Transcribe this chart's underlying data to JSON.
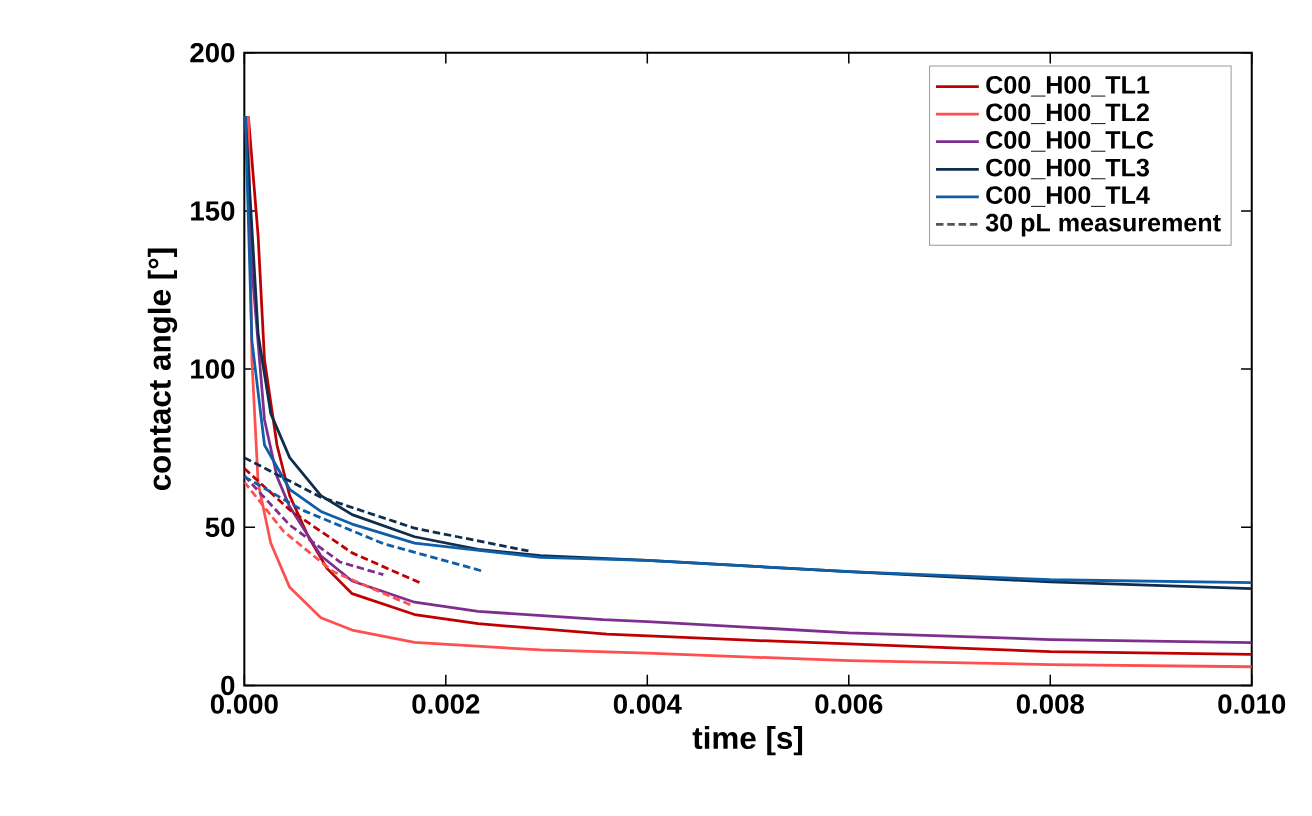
{
  "chart_data": {
    "type": "line",
    "xlabel": "time [s]",
    "ylabel": "contact angle [°]",
    "xlim": [
      0,
      0.01
    ],
    "ylim": [
      0,
      200
    ],
    "xticks": [
      {
        "value": 0,
        "label": "0.000"
      },
      {
        "value": 0.002,
        "label": "0.002"
      },
      {
        "value": 0.004,
        "label": "0.004"
      },
      {
        "value": 0.006,
        "label": "0.006"
      },
      {
        "value": 0.008,
        "label": "0.008"
      },
      {
        "value": 0.01,
        "label": "0.010"
      }
    ],
    "yticks": [
      0,
      50,
      100,
      150,
      200
    ],
    "legend": "top right",
    "grid": false,
    "series": [
      {
        "name": "C00_H00_TL1",
        "color": "#c00000",
        "line_style": "solid",
        "x": [
          4e-05,
          0.000137,
          0.0002,
          0.000324,
          0.00045,
          0.000636,
          0.00082,
          0.00107,
          0.00169,
          0.00232,
          0.0036,
          0.005,
          0.006,
          0.008,
          0.01
        ],
        "values": [
          180,
          142,
          103,
          76,
          60,
          47,
          37,
          29,
          22.4,
          19.5,
          16.2,
          14.3,
          13.1,
          10.7,
          9.8
        ]
      },
      {
        "name": "C00_H00_TL2",
        "color": "#ff4f4f",
        "line_style": "solid",
        "x": [
          4e-05,
          7.5e-05,
          0.000137,
          0.000262,
          0.00045,
          0.00076,
          0.00107,
          0.00169,
          0.00294,
          0.004,
          0.006,
          0.008,
          0.01
        ],
        "values": [
          180,
          103,
          64,
          45,
          31,
          21.4,
          17.5,
          13.6,
          11.2,
          10.2,
          7.8,
          6.6,
          5.9
        ]
      },
      {
        "name": "C00_H00_TLC",
        "color": "#7e2f8e",
        "line_style": "solid",
        "x": [
          1e-05,
          7.5e-05,
          0.0002,
          0.000324,
          0.00045,
          0.00076,
          0.00107,
          0.00169,
          0.00232,
          0.00356,
          0.004,
          0.006,
          0.008,
          0.01
        ],
        "values": [
          180,
          132,
          84,
          66,
          56.5,
          41,
          33,
          26.3,
          23.4,
          20.8,
          20.2,
          16.6,
          14.5,
          13.5
        ]
      },
      {
        "name": "C00_H00_TL3",
        "color": "#0f2d4d",
        "line_style": "solid",
        "x": [
          1e-05,
          0.000137,
          0.000262,
          0.00045,
          0.00076,
          0.00107,
          0.00169,
          0.00232,
          0.00294,
          0.004,
          0.006,
          0.008,
          0.01
        ],
        "values": [
          180,
          111,
          86,
          72,
          60,
          54,
          47,
          43,
          41,
          39.5,
          36,
          32.7,
          30.6
        ]
      },
      {
        "name": "C00_H00_TL4",
        "color": "#0f5ea8",
        "line_style": "solid",
        "x": [
          1e-05,
          7.5e-05,
          0.0002,
          0.00045,
          0.00076,
          0.00107,
          0.00169,
          0.00294,
          0.004,
          0.006,
          0.008,
          0.01
        ],
        "values": [
          180,
          109,
          76,
          62,
          55,
          51,
          45,
          40.5,
          39.5,
          36,
          33.4,
          32.5
        ]
      },
      {
        "color": "#c00000",
        "line_style": "dashed",
        "x": [
          0,
          0.00045,
          0.00107,
          0.00176
        ],
        "values": [
          68.6,
          55.5,
          41.9,
          32.2
        ]
      },
      {
        "color": "#ff4f4f",
        "line_style": "dashed",
        "x": [
          0,
          0.00039,
          0.00088,
          0.00166
        ],
        "values": [
          64.3,
          48.7,
          36,
          25.3
        ]
      },
      {
        "color": "#7e2f8e",
        "line_style": "dashed",
        "x": [
          0,
          0.00045,
          0.00095,
          0.00138
        ],
        "values": [
          66.3,
          50.7,
          39,
          35
        ]
      },
      {
        "color": "#0f2d4d",
        "line_style": "dashed",
        "x": [
          0,
          0.00076,
          0.00169,
          0.00282
        ],
        "values": [
          72,
          59.5,
          49.7,
          42.5
        ]
      },
      {
        "color": "#0f5ea8",
        "line_style": "dashed",
        "x": [
          0,
          0.00057,
          0.00138,
          0.00238
        ],
        "values": [
          66,
          55.5,
          44.8,
          36
        ]
      },
      {
        "name": "30 pL measurement",
        "color": "#555555",
        "line_style": "dashed"
      }
    ]
  }
}
